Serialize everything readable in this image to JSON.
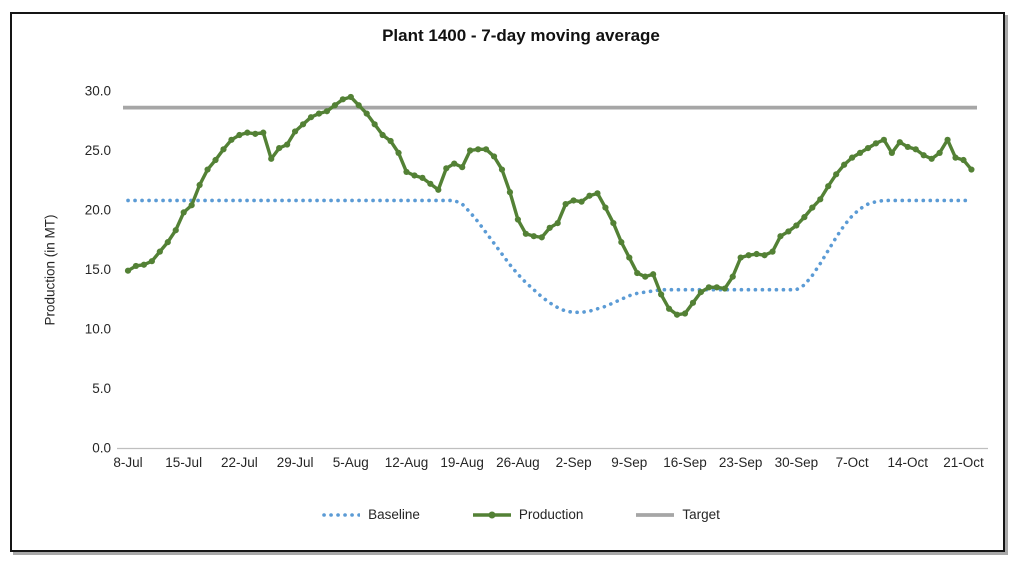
{
  "chart_data": {
    "type": "line",
    "title": "Plant 1400 - 7-day moving average",
    "xlabel": "",
    "ylabel": "Production (in MT)",
    "ylim": [
      0,
      30
    ],
    "ytick_step": 5,
    "ytick_labels": [
      "0.0",
      "5.0",
      "10.0",
      "15.0",
      "20.0",
      "25.0",
      "30.0"
    ],
    "x_unit": "day-index (daily points, one per day)",
    "x_ticks": [
      {
        "day": 0,
        "label": "8-Jul"
      },
      {
        "day": 7,
        "label": "15-Jul"
      },
      {
        "day": 14,
        "label": "22-Jul"
      },
      {
        "day": 21,
        "label": "29-Jul"
      },
      {
        "day": 28,
        "label": "5-Aug"
      },
      {
        "day": 35,
        "label": "12-Aug"
      },
      {
        "day": 42,
        "label": "19-Aug"
      },
      {
        "day": 49,
        "label": "26-Aug"
      },
      {
        "day": 56,
        "label": "2-Sep"
      },
      {
        "day": 63,
        "label": "9-Sep"
      },
      {
        "day": 70,
        "label": "16-Sep"
      },
      {
        "day": 77,
        "label": "23-Sep"
      },
      {
        "day": 84,
        "label": "30-Sep"
      },
      {
        "day": 91,
        "label": "7-Oct"
      },
      {
        "day": 98,
        "label": "14-Oct"
      },
      {
        "day": 105,
        "label": "21-Oct"
      }
    ],
    "grid": false,
    "legend_position": "bottom",
    "series": [
      {
        "name": "Baseline",
        "style": "dotted",
        "color": "#5B9BD5",
        "values": [
          20.8,
          20.8,
          20.8,
          20.8,
          20.8,
          20.8,
          20.8,
          20.8,
          20.8,
          20.8,
          20.8,
          20.8,
          20.8,
          20.8,
          20.8,
          20.8,
          20.8,
          20.8,
          20.8,
          20.8,
          20.8,
          20.8,
          20.8,
          20.8,
          20.8,
          20.8,
          20.8,
          20.8,
          20.8,
          20.8,
          20.8,
          20.8,
          20.8,
          20.8,
          20.8,
          20.8,
          20.8,
          20.8,
          20.8,
          20.8,
          20.8,
          20.8,
          20.5,
          19.8,
          19.0,
          18.1,
          17.2,
          16.3,
          15.4,
          14.6,
          13.9,
          13.3,
          12.7,
          12.2,
          11.8,
          11.5,
          11.4,
          11.4,
          11.5,
          11.7,
          11.9,
          12.2,
          12.5,
          12.8,
          13.0,
          13.1,
          13.2,
          13.3,
          13.3,
          13.3,
          13.3,
          13.3,
          13.3,
          13.3,
          13.3,
          13.3,
          13.3,
          13.3,
          13.3,
          13.3,
          13.3,
          13.3,
          13.3,
          13.3,
          13.3,
          13.7,
          14.5,
          15.5,
          16.6,
          17.7,
          18.7,
          19.5,
          20.1,
          20.5,
          20.7,
          20.8,
          20.8,
          20.8,
          20.8,
          20.8,
          20.8,
          20.8,
          20.8,
          20.8,
          20.8,
          20.8,
          20.8
        ]
      },
      {
        "name": "Production",
        "style": "line-with-markers",
        "color": "#538135",
        "values": [
          14.9,
          15.3,
          15.4,
          15.7,
          16.5,
          17.3,
          18.3,
          19.8,
          20.4,
          22.1,
          23.4,
          24.2,
          25.1,
          25.9,
          26.3,
          26.5,
          26.4,
          26.5,
          24.3,
          25.2,
          25.5,
          26.6,
          27.2,
          27.8,
          28.1,
          28.3,
          28.8,
          29.3,
          29.5,
          28.8,
          28.1,
          27.2,
          26.3,
          25.8,
          24.8,
          23.2,
          22.9,
          22.7,
          22.2,
          21.7,
          23.5,
          23.9,
          23.6,
          25.0,
          25.1,
          25.1,
          24.5,
          23.4,
          21.5,
          19.2,
          18.0,
          17.8,
          17.7,
          18.5,
          18.9,
          20.5,
          20.8,
          20.7,
          21.2,
          21.4,
          20.2,
          18.9,
          17.3,
          16.0,
          14.7,
          14.4,
          14.6,
          12.9,
          11.7,
          11.2,
          11.3,
          12.2,
          13.1,
          13.5,
          13.5,
          13.4,
          14.4,
          16.0,
          16.2,
          16.3,
          16.2,
          16.5,
          17.8,
          18.2,
          18.7,
          19.4,
          20.2,
          20.9,
          22.0,
          23.0,
          23.8,
          24.4,
          24.8,
          25.2,
          25.6,
          25.9,
          24.8,
          25.7,
          25.3,
          25.1,
          24.6,
          24.3,
          24.8,
          25.9,
          24.4,
          24.2,
          23.4
        ]
      },
      {
        "name": "Target",
        "style": "horizontal-line",
        "color": "#A6A6A6",
        "value": 28.6
      }
    ],
    "axis_line_color": "#BFBFBF",
    "text_color": "#262626"
  }
}
